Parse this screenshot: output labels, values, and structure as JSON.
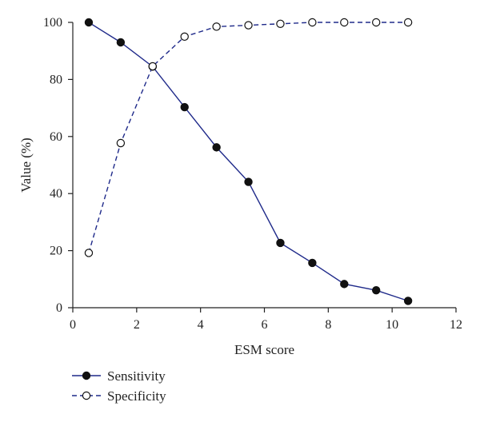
{
  "colors": {
    "series_line": "#1f2a8a",
    "axis": "#222222",
    "filled_marker": "#111111",
    "open_marker_fill": "#ffffff"
  },
  "chart_data": {
    "type": "line",
    "title": "",
    "xlabel": "ESM score",
    "ylabel": "Value (%)",
    "xlim": [
      0,
      12
    ],
    "ylim": [
      0,
      100
    ],
    "xticks": [
      0,
      2,
      4,
      6,
      8,
      10,
      12
    ],
    "yticks": [
      0,
      20,
      40,
      60,
      80,
      100
    ],
    "grid": false,
    "legend_position": "bottom-left",
    "series": [
      {
        "name": "Sensitivity",
        "line_style": "solid",
        "marker": "filled-circle",
        "x": [
          0.5,
          1.5,
          2.5,
          3.5,
          4.5,
          5.5,
          6.5,
          7.5,
          8.5,
          9.5,
          10.5
        ],
        "y": [
          100,
          93,
          84.5,
          70.3,
          56.2,
          44.1,
          22.7,
          15.7,
          8.3,
          6.1,
          2.4
        ]
      },
      {
        "name": "Specificity",
        "line_style": "dashed",
        "marker": "open-circle",
        "x": [
          0.5,
          1.5,
          2.5,
          3.5,
          4.5,
          5.5,
          6.5,
          7.5,
          8.5,
          9.5,
          10.5
        ],
        "y": [
          19.2,
          57.7,
          84.6,
          95,
          98.5,
          99,
          99.5,
          100,
          100,
          100,
          100
        ]
      }
    ]
  }
}
